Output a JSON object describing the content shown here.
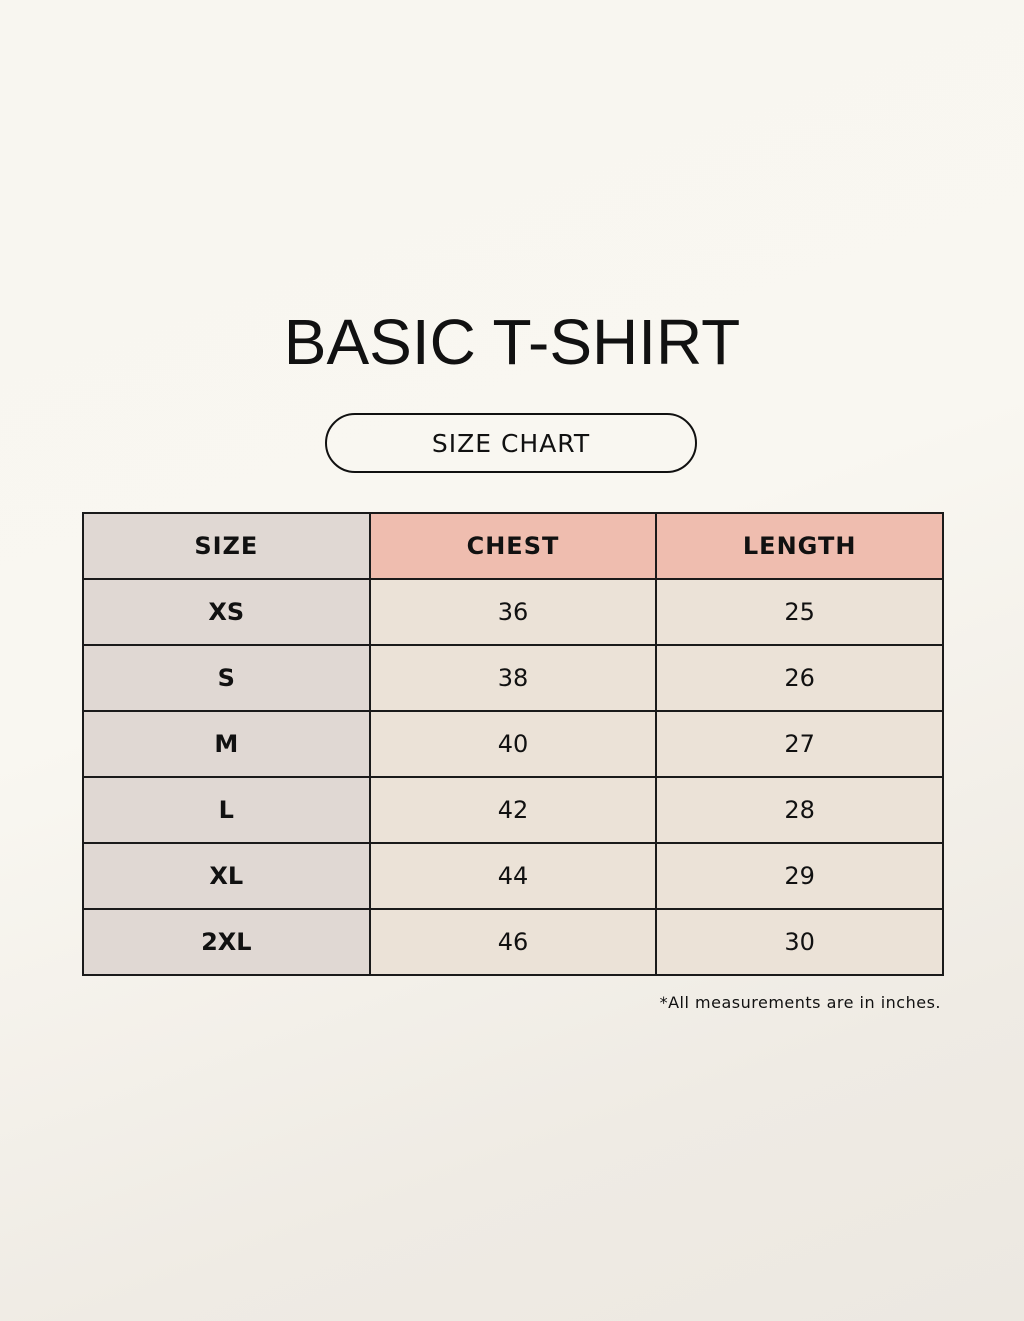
{
  "title": "BASIC T-SHIRT",
  "subtitle": "SIZE CHART",
  "colors": {
    "size_column": "#e0d8d3",
    "header_highlight": "#efbdaf",
    "value_cell": "#ebe2d7"
  },
  "table": {
    "headers": [
      "SIZE",
      "CHEST",
      "LENGTH"
    ],
    "rows": [
      [
        "XS",
        "36",
        "25"
      ],
      [
        "S",
        "38",
        "26"
      ],
      [
        "M",
        "40",
        "27"
      ],
      [
        "L",
        "42",
        "28"
      ],
      [
        "XL",
        "44",
        "29"
      ],
      [
        "2XL",
        "46",
        "30"
      ]
    ]
  },
  "note": "*All measurements are in inches."
}
